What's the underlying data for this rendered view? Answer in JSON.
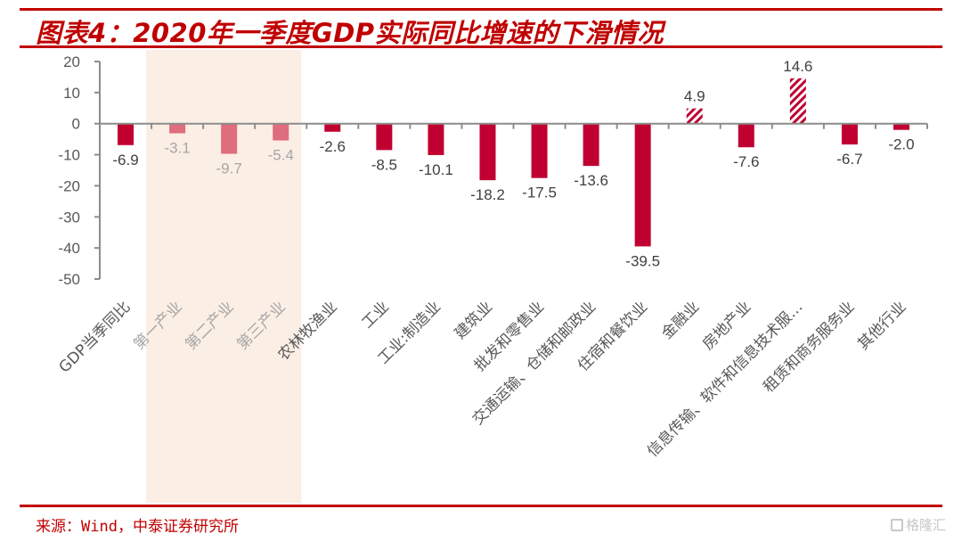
{
  "title": "图表4：2020年一季度GDP实际同比增速的下滑情况",
  "source": "来源：Wind，中泰证券研究所",
  "watermark": "格隆汇",
  "colors": {
    "accent": "#c00000",
    "bar_main": "#c00030",
    "bar_highlight_group": "#de6d7e",
    "highlight_band": "#fbeee5",
    "axis": "#8c8c8c"
  },
  "chart_data": {
    "type": "bar",
    "title": "图表4：2020年一季度GDP实际同比增速的下滑情况",
    "xlabel": "",
    "ylabel": "",
    "ylim": [
      -50,
      20
    ],
    "yticks": [
      20,
      10,
      0,
      -10,
      -20,
      -30,
      -40,
      -50
    ],
    "grid": false,
    "legend": "none",
    "categories": [
      "GDP当季同比",
      "第一产业",
      "第二产业",
      "第三产业",
      "农林牧渔业",
      "工业",
      "工业:制造业",
      "建筑业",
      "批发和零售业",
      "交通运输、仓储和邮政业",
      "住宿和餐饮业",
      "金融业",
      "房地产业",
      "信息传输、软件和信息技术服…",
      "租赁和商务服务业",
      "其他行业"
    ],
    "values": [
      -6.9,
      -3.1,
      -9.7,
      -5.4,
      -2.6,
      -8.5,
      -10.1,
      -18.2,
      -17.5,
      -13.6,
      -39.5,
      4.9,
      -7.6,
      14.6,
      -6.7,
      -2.0
    ],
    "data_labels": [
      "-6.9",
      "-3.1",
      "-9.7",
      "-5.4",
      "-2.6",
      "-8.5",
      "-10.1",
      "-18.2",
      "-17.5",
      "-13.6",
      "-39.5",
      "4.9",
      "-7.6",
      "14.6",
      "-6.7",
      "-2.0"
    ],
    "styles": [
      "solid",
      "light",
      "light",
      "light",
      "solid",
      "solid",
      "solid",
      "solid",
      "solid",
      "solid",
      "solid",
      "hatched",
      "solid",
      "hatched",
      "solid",
      "solid"
    ],
    "highlighted_categories": [
      "第一产业",
      "第二产业",
      "第三产业"
    ]
  }
}
